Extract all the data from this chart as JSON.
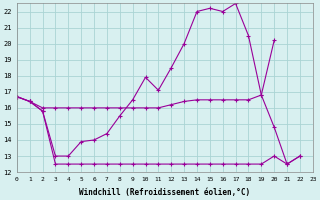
{
  "xlabel": "Windchill (Refroidissement éolien,°C)",
  "background_color": "#d8f0f0",
  "grid_color": "#aad4d4",
  "line_color": "#990099",
  "xlim": [
    0,
    23
  ],
  "ylim": [
    12,
    22.5
  ],
  "yticks": [
    12,
    13,
    14,
    15,
    16,
    17,
    18,
    19,
    20,
    21,
    22
  ],
  "xticks": [
    0,
    1,
    2,
    3,
    4,
    5,
    6,
    7,
    8,
    9,
    10,
    11,
    12,
    13,
    14,
    15,
    16,
    17,
    18,
    19,
    20,
    21,
    22,
    23
  ],
  "series": [
    {
      "x": [
        0,
        1,
        2,
        3,
        4,
        5,
        6,
        7,
        8,
        9,
        10,
        11,
        12,
        13,
        14,
        15,
        16,
        17,
        18,
        19,
        20,
        21,
        22
      ],
      "y": [
        16.7,
        16.4,
        15.8,
        13.0,
        13.0,
        13.9,
        14.0,
        14.4,
        15.5,
        16.5,
        17.9,
        17.1,
        18.5,
        20.0,
        22.0,
        22.2,
        22.0,
        22.5,
        20.5,
        16.8,
        14.8,
        12.5,
        13.0
      ]
    },
    {
      "x": [
        0,
        1,
        2,
        3,
        4,
        5,
        6,
        7,
        8,
        9,
        10,
        11,
        12,
        13,
        14,
        15,
        16,
        17,
        18,
        19,
        20
      ],
      "y": [
        16.7,
        16.4,
        16.0,
        16.0,
        16.0,
        16.0,
        16.0,
        16.0,
        16.0,
        16.0,
        16.0,
        16.0,
        16.2,
        16.4,
        16.5,
        16.5,
        16.5,
        16.5,
        16.5,
        16.8,
        20.2
      ]
    },
    {
      "x": [
        0,
        1,
        2,
        3,
        4,
        5,
        6,
        7,
        8,
        9,
        10,
        11,
        12,
        13,
        14,
        15,
        16,
        17,
        18,
        19,
        20,
        21,
        22
      ],
      "y": [
        16.7,
        16.4,
        15.8,
        12.5,
        12.5,
        12.5,
        12.5,
        12.5,
        12.5,
        12.5,
        12.5,
        12.5,
        12.5,
        12.5,
        12.5,
        12.5,
        12.5,
        12.5,
        12.5,
        12.5,
        13.0,
        12.5,
        13.0
      ]
    }
  ],
  "marker": "+",
  "markersize": 3.5,
  "linewidth": 0.8
}
